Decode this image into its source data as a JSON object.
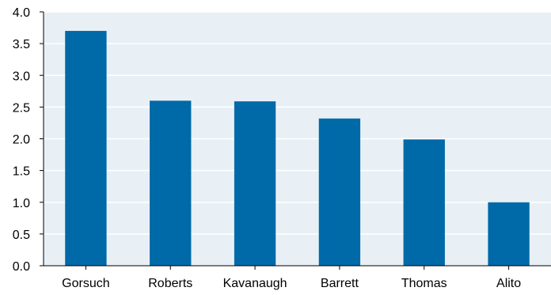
{
  "chart_data": {
    "type": "bar",
    "title": "",
    "xlabel": "",
    "ylabel": "",
    "categories": [
      "Gorsuch",
      "Roberts",
      "Kavanaugh",
      "Barrett",
      "Thomas",
      "Alito"
    ],
    "values": [
      3.7,
      2.6,
      2.59,
      2.32,
      1.99,
      1.0
    ],
    "ylim": [
      0,
      4.0
    ],
    "yticks": [
      "0.0",
      "0.5",
      "1.0",
      "1.5",
      "2.0",
      "2.5",
      "3.0",
      "3.5",
      "4.0"
    ],
    "grid": true,
    "colors": {
      "bar": "#0069a8",
      "plot_background": "#e8f0f5",
      "gridline": "#ffffff",
      "axis": "#000000"
    }
  }
}
